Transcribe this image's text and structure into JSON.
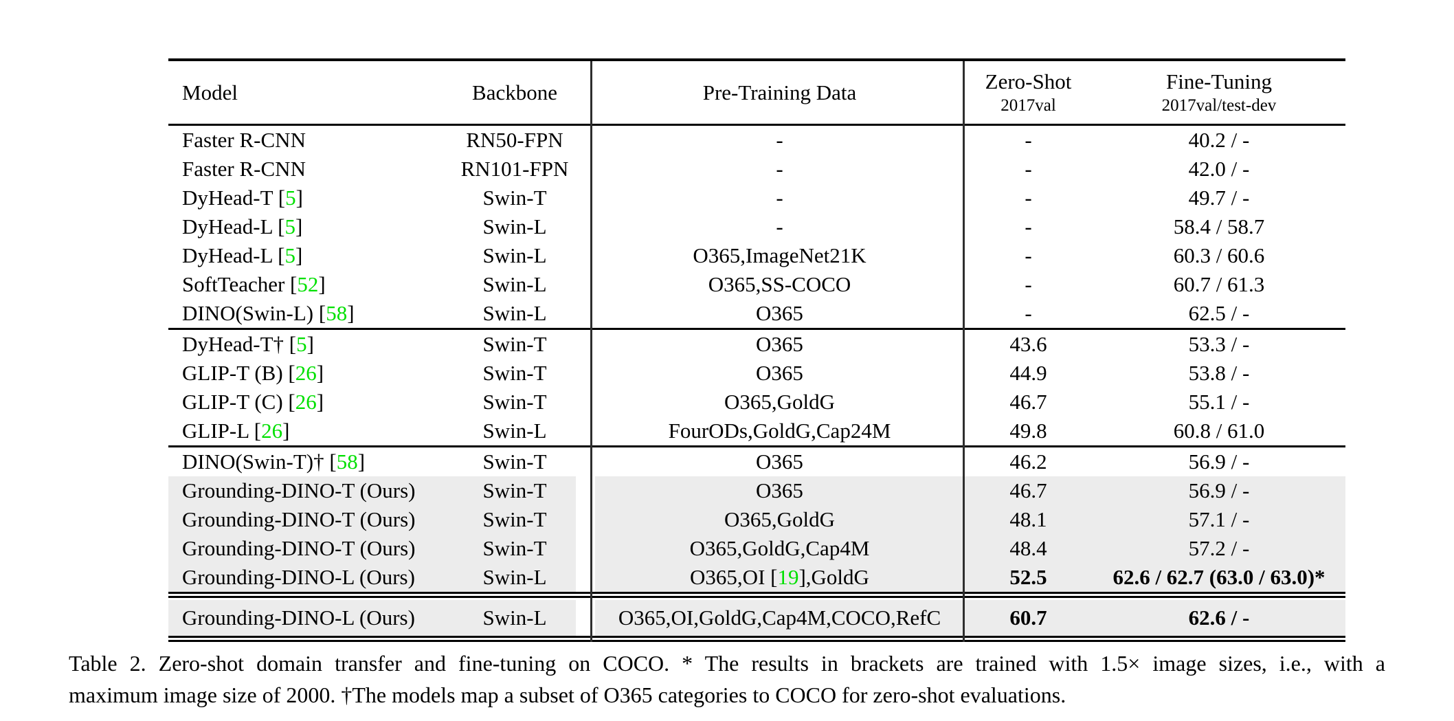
{
  "colors": {
    "citation_green": "#00e000",
    "highlight_gray": "#ececec",
    "rule_black": "#000000"
  },
  "header": {
    "model": "Model",
    "backbone": "Backbone",
    "pretrain": "Pre-Training Data",
    "zeroshot": "Zero-Shot",
    "zeroshot_sub": "2017val",
    "finetune": "Fine-Tuning",
    "finetune_sub": "2017val/test-dev"
  },
  "sections": [
    {
      "rows": [
        {
          "model": [
            {
              "t": "Faster R-CNN"
            }
          ],
          "backbone": "RN50-FPN",
          "pretrain": [
            {
              "t": "-"
            }
          ],
          "zeroshot": "-",
          "finetune": "40.2 / -",
          "highlight": false,
          "bold": false
        },
        {
          "model": [
            {
              "t": "Faster R-CNN"
            }
          ],
          "backbone": "RN101-FPN",
          "pretrain": [
            {
              "t": "-"
            }
          ],
          "zeroshot": "-",
          "finetune": "42.0 / -",
          "highlight": false,
          "bold": false
        },
        {
          "model": [
            {
              "t": "DyHead-T ["
            },
            {
              "t": "5",
              "c": true
            },
            {
              "t": "]"
            }
          ],
          "backbone": "Swin-T",
          "pretrain": [
            {
              "t": "-"
            }
          ],
          "zeroshot": "-",
          "finetune": "49.7 / -",
          "highlight": false,
          "bold": false
        },
        {
          "model": [
            {
              "t": "DyHead-L ["
            },
            {
              "t": "5",
              "c": true
            },
            {
              "t": "]"
            }
          ],
          "backbone": "Swin-L",
          "pretrain": [
            {
              "t": "-"
            }
          ],
          "zeroshot": "-",
          "finetune": "58.4 / 58.7",
          "highlight": false,
          "bold": false
        },
        {
          "model": [
            {
              "t": "DyHead-L ["
            },
            {
              "t": "5",
              "c": true
            },
            {
              "t": "]"
            }
          ],
          "backbone": "Swin-L",
          "pretrain": [
            {
              "t": "O365,ImageNet21K"
            }
          ],
          "zeroshot": "-",
          "finetune": "60.3 / 60.6",
          "highlight": false,
          "bold": false
        },
        {
          "model": [
            {
              "t": "SoftTeacher ["
            },
            {
              "t": "52",
              "c": true
            },
            {
              "t": "]"
            }
          ],
          "backbone": "Swin-L",
          "pretrain": [
            {
              "t": "O365,SS-COCO"
            }
          ],
          "zeroshot": "-",
          "finetune": "60.7 / 61.3",
          "highlight": false,
          "bold": false
        },
        {
          "model": [
            {
              "t": "DINO(Swin-L) ["
            },
            {
              "t": "58",
              "c": true
            },
            {
              "t": "]"
            }
          ],
          "backbone": "Swin-L",
          "pretrain": [
            {
              "t": "O365"
            }
          ],
          "zeroshot": "-",
          "finetune": "62.5 / -",
          "highlight": false,
          "bold": false
        }
      ]
    },
    {
      "rows": [
        {
          "model": [
            {
              "t": "DyHead-T† ["
            },
            {
              "t": "5",
              "c": true
            },
            {
              "t": "]"
            }
          ],
          "backbone": "Swin-T",
          "pretrain": [
            {
              "t": "O365"
            }
          ],
          "zeroshot": "43.6",
          "finetune": "53.3 / -",
          "highlight": false,
          "bold": false
        },
        {
          "model": [
            {
              "t": "GLIP-T (B) ["
            },
            {
              "t": "26",
              "c": true
            },
            {
              "t": "]"
            }
          ],
          "backbone": "Swin-T",
          "pretrain": [
            {
              "t": "O365"
            }
          ],
          "zeroshot": "44.9",
          "finetune": "53.8 / -",
          "highlight": false,
          "bold": false
        },
        {
          "model": [
            {
              "t": "GLIP-T (C) ["
            },
            {
              "t": "26",
              "c": true
            },
            {
              "t": "]"
            }
          ],
          "backbone": "Swin-T",
          "pretrain": [
            {
              "t": "O365,GoldG"
            }
          ],
          "zeroshot": "46.7",
          "finetune": "55.1 / -",
          "highlight": false,
          "bold": false
        },
        {
          "model": [
            {
              "t": "GLIP-L ["
            },
            {
              "t": "26",
              "c": true
            },
            {
              "t": "]"
            }
          ],
          "backbone": "Swin-L",
          "pretrain": [
            {
              "t": "FourODs,GoldG,Cap24M"
            }
          ],
          "zeroshot": "49.8",
          "finetune": "60.8 / 61.0",
          "highlight": false,
          "bold": false
        }
      ]
    },
    {
      "rows": [
        {
          "model": [
            {
              "t": "DINO(Swin-T)† ["
            },
            {
              "t": "58",
              "c": true
            },
            {
              "t": "]"
            }
          ],
          "backbone": "Swin-T",
          "pretrain": [
            {
              "t": "O365"
            }
          ],
          "zeroshot": "46.2",
          "finetune": "56.9 / -",
          "highlight": false,
          "bold": false
        },
        {
          "model": [
            {
              "t": "Grounding-DINO-T (Ours)"
            }
          ],
          "backbone": "Swin-T",
          "pretrain": [
            {
              "t": "O365"
            }
          ],
          "zeroshot": "46.7",
          "finetune": "56.9 / -",
          "highlight": true,
          "bold": false
        },
        {
          "model": [
            {
              "t": "Grounding-DINO-T (Ours)"
            }
          ],
          "backbone": "Swin-T",
          "pretrain": [
            {
              "t": "O365,GoldG"
            }
          ],
          "zeroshot": "48.1",
          "finetune": "57.1 / -",
          "highlight": true,
          "bold": false
        },
        {
          "model": [
            {
              "t": "Grounding-DINO-T (Ours)"
            }
          ],
          "backbone": "Swin-T",
          "pretrain": [
            {
              "t": "O365,GoldG,Cap4M"
            }
          ],
          "zeroshot": "48.4",
          "finetune": "57.2 / -",
          "highlight": true,
          "bold": false
        },
        {
          "model": [
            {
              "t": "Grounding-DINO-L (Ours)"
            }
          ],
          "backbone": "Swin-L",
          "pretrain": [
            {
              "t": "O365,OI ["
            },
            {
              "t": "19",
              "c": true
            },
            {
              "t": "],GoldG"
            }
          ],
          "zeroshot": "52.5",
          "finetune": "62.6 / 62.7 (63.0 / 63.0)*",
          "highlight": true,
          "bold": true
        }
      ]
    },
    {
      "rows": [
        {
          "model": [
            {
              "t": "Grounding-DINO-L (Ours)"
            }
          ],
          "backbone": "Swin-L",
          "pretrain": [
            {
              "t": "O365,OI,GoldG,Cap4M,COCO,RefC"
            }
          ],
          "zeroshot": "60.7",
          "finetune": "62.6 / -",
          "highlight": true,
          "bold": true
        }
      ]
    }
  ],
  "caption": {
    "line1": "Table 2.  Zero-shot domain transfer and fine-tuning on COCO. * The results in brackets are trained with 1.5× image sizes, i.e., with a",
    "line2": "maximum image size of 2000. †The models map a subset of O365 categories to COCO for zero-shot evaluations."
  }
}
